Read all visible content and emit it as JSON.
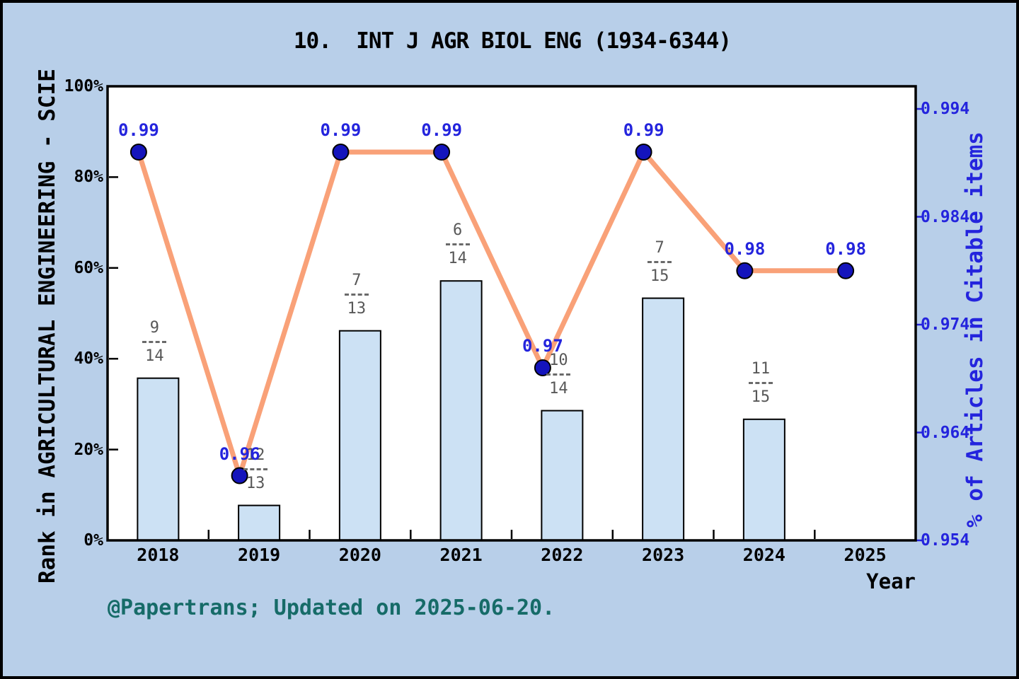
{
  "title": "10.  INT J AGR BIOL ENG (1934-6344)",
  "caption": "@Papertrans; Updated on 2025-06-20.",
  "colors": {
    "background": "#b8cfe9",
    "plot_background": "#ffffff",
    "bar_fill": "#cce1f4",
    "bar_edge": "#000000",
    "line": "#f9a178",
    "marker_fill": "#1414bc",
    "marker_edge": "#000000",
    "blue_text": "#2424dd",
    "fraction_text": "#585858",
    "caption_text": "#166b68"
  },
  "chart_data": {
    "type": "bar+line",
    "title": "10.  INT J AGR BIOL ENG (1934-6344)",
    "categories": [
      "2018",
      "2019",
      "2020",
      "2021",
      "2022",
      "2023",
      "2024",
      "2025"
    ],
    "series": [
      {
        "name": "Rank in AGRICULTURAL ENGINEERING - SCIE",
        "type": "bar",
        "axis": "left",
        "values": [
          35.71,
          7.69,
          46.15,
          57.14,
          28.57,
          53.33,
          26.67,
          null
        ],
        "rank_labels": [
          {
            "numerator": "9",
            "denominator": "14"
          },
          {
            "numerator": "12",
            "denominator": "13"
          },
          {
            "numerator": "7",
            "denominator": "13"
          },
          {
            "numerator": "6",
            "denominator": "14"
          },
          {
            "numerator": "10",
            "denominator": "14"
          },
          {
            "numerator": "7",
            "denominator": "15"
          },
          {
            "numerator": "11",
            "denominator": "15"
          },
          null
        ]
      },
      {
        "name": "% of Articles in Citable items",
        "type": "line",
        "axis": "right",
        "values": [
          0.99,
          0.96,
          0.99,
          0.99,
          0.97,
          0.99,
          0.979,
          0.979
        ],
        "point_labels": [
          "0.99",
          "0.96",
          "0.99",
          "0.99",
          "0.97",
          "0.99",
          "0.98",
          "0.98"
        ]
      }
    ],
    "left_axis": {
      "label": "Rank in AGRICULTURAL ENGINEERING - SCIE",
      "ticks": [
        "0%",
        "20%",
        "40%",
        "60%",
        "80%",
        "100%"
      ],
      "range": [
        0,
        100
      ]
    },
    "right_axis": {
      "label": "% of Articles in Citable items",
      "ticks": [
        "0.954",
        "0.964",
        "0.974",
        "0.984",
        "0.994"
      ],
      "range": [
        0.954,
        0.994
      ]
    },
    "x_axis": {
      "label": "Year"
    },
    "grid": false,
    "legend": false
  }
}
